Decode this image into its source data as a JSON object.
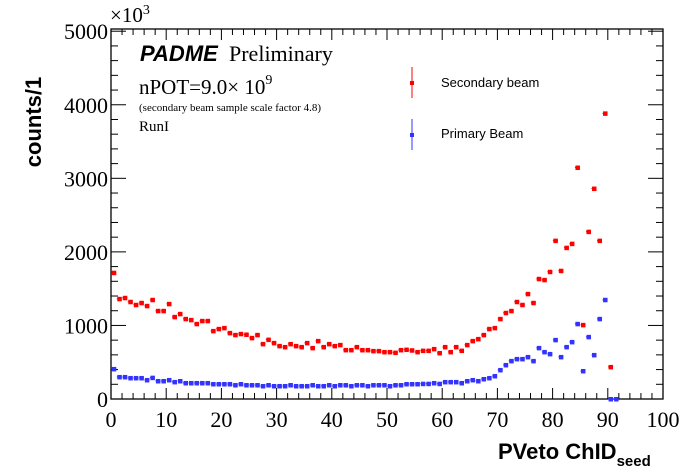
{
  "chart_data": {
    "type": "scatter",
    "title": "",
    "xlabel": "PVeto ChID",
    "xlabel_subscript": "seed",
    "ylabel": "counts/1",
    "y_multiplier_label": "×10",
    "y_multiplier_exponent": "3",
    "xlim": [
      0,
      100
    ],
    "ylim": [
      0,
      5030
    ],
    "x_ticks": [
      0,
      10,
      20,
      30,
      40,
      50,
      60,
      70,
      80,
      90,
      100
    ],
    "x_tick_labels": [
      "0",
      "10",
      "20",
      "30",
      "40",
      "50",
      "60",
      "70",
      "80",
      "90",
      "100"
    ],
    "y_ticks": [
      0,
      1000,
      2000,
      3000,
      4000,
      5000
    ],
    "y_tick_labels": [
      "0",
      "1000",
      "2000",
      "3000",
      "4000",
      "5000"
    ],
    "grid": false,
    "legend_position": "top-right",
    "annotations": {
      "experiment": "PADME",
      "status": "Preliminary",
      "npot_prefix": "nPOT=9.0× 10",
      "npot_exponent": "9",
      "scale_note": "(secondary beam sample scale factor 4.8)",
      "run": "RunI"
    },
    "series": [
      {
        "name": "Secondary beam",
        "color": "#ff0000",
        "x": [
          0,
          1,
          2,
          3,
          4,
          5,
          6,
          7,
          8,
          9,
          10,
          11,
          12,
          13,
          14,
          15,
          16,
          17,
          18,
          19,
          20,
          21,
          22,
          23,
          24,
          25,
          26,
          27,
          28,
          29,
          30,
          31,
          32,
          33,
          34,
          35,
          36,
          37,
          38,
          39,
          40,
          41,
          42,
          43,
          44,
          45,
          46,
          47,
          48,
          49,
          50,
          51,
          52,
          53,
          54,
          55,
          56,
          57,
          58,
          59,
          60,
          61,
          62,
          63,
          64,
          65,
          66,
          67,
          68,
          69,
          70,
          71,
          72,
          73,
          74,
          75,
          76,
          77,
          78,
          79,
          80,
          81,
          82,
          83,
          84,
          85,
          86,
          87,
          88,
          89,
          90
        ],
        "values": [
          1717,
          1362,
          1376,
          1322,
          1281,
          1308,
          1267,
          1349,
          1199,
          1199,
          1294,
          1117,
          1158,
          1090,
          1076,
          1022,
          1063,
          1063,
          926,
          954,
          967,
          899,
          872,
          886,
          877,
          831,
          872,
          749,
          808,
          763,
          722,
          708,
          749,
          722,
          708,
          763,
          695,
          790,
          708,
          749,
          722,
          736,
          667,
          667,
          708,
          667,
          667,
          654,
          654,
          640,
          640,
          631,
          667,
          672,
          663,
          640,
          658,
          658,
          681,
          626,
          708,
          640,
          708,
          658,
          736,
          790,
          817,
          872,
          954,
          967,
          1090,
          1172,
          1199,
          1322,
          1281,
          1430,
          1308,
          1634,
          1620,
          1730,
          2153,
          1744,
          2057,
          2112,
          3147,
          1008,
          2275,
          2861,
          2153,
          3883,
          436
        ]
      },
      {
        "name": "Primary Beam",
        "color": "#3333ff",
        "x": [
          0,
          1,
          2,
          3,
          4,
          5,
          6,
          7,
          8,
          9,
          10,
          11,
          12,
          13,
          14,
          15,
          16,
          17,
          18,
          19,
          20,
          21,
          22,
          23,
          24,
          25,
          26,
          27,
          28,
          29,
          30,
          31,
          32,
          33,
          34,
          35,
          36,
          37,
          38,
          39,
          40,
          41,
          42,
          43,
          44,
          45,
          46,
          47,
          48,
          49,
          50,
          51,
          52,
          53,
          54,
          55,
          56,
          57,
          58,
          59,
          60,
          61,
          62,
          63,
          64,
          65,
          66,
          67,
          68,
          69,
          70,
          71,
          72,
          73,
          74,
          75,
          76,
          77,
          78,
          79,
          80,
          81,
          82,
          83,
          84,
          85,
          86,
          87,
          88,
          89,
          90,
          91
        ],
        "values": [
          409,
          300,
          300,
          286,
          286,
          286,
          259,
          290,
          245,
          245,
          259,
          232,
          245,
          218,
          218,
          218,
          218,
          218,
          204,
          204,
          204,
          204,
          190,
          204,
          190,
          190,
          190,
          177,
          190,
          177,
          177,
          177,
          190,
          177,
          177,
          177,
          190,
          177,
          177,
          190,
          177,
          190,
          190,
          177,
          190,
          190,
          177,
          190,
          190,
          190,
          177,
          190,
          190,
          204,
          204,
          204,
          208,
          208,
          218,
          208,
          232,
          232,
          232,
          218,
          245,
          259,
          245,
          272,
          286,
          313,
          395,
          463,
          518,
          545,
          545,
          572,
          518,
          695,
          640,
          613,
          804,
          572,
          708,
          776,
          1022,
          381,
          845,
          599,
          1090,
          1349,
          0,
          0
        ]
      }
    ]
  }
}
